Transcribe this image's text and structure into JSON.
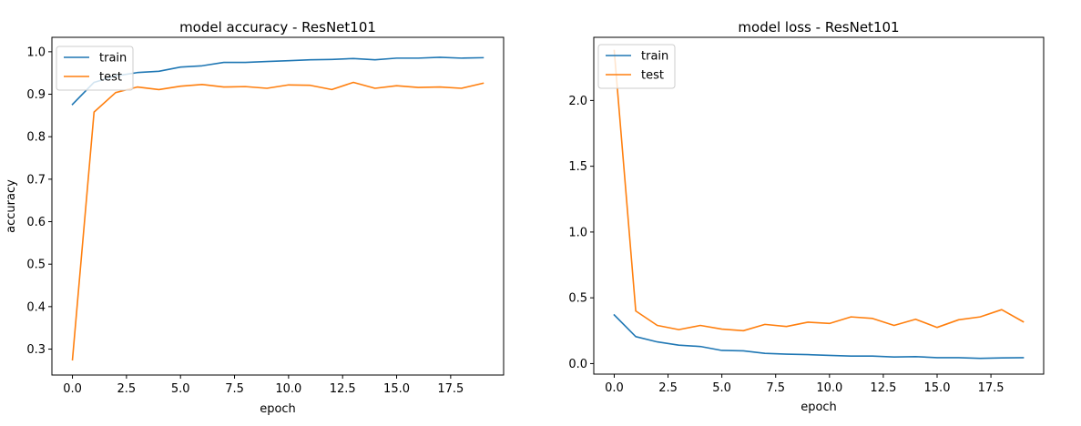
{
  "chart_data": [
    {
      "type": "line",
      "title": "model accuracy - ResNet101",
      "xlabel": "epoch",
      "ylabel": "accuracy",
      "xlim": [
        -0.95,
        19.95
      ],
      "ylim": [
        0.239,
        1.034
      ],
      "xticks": [
        0.0,
        2.5,
        5.0,
        7.5,
        10.0,
        12.5,
        15.0,
        17.5
      ],
      "xtick_labels": [
        "0.0",
        "2.5",
        "5.0",
        "7.5",
        "10.0",
        "12.5",
        "15.0",
        "17.5"
      ],
      "yticks": [
        0.3,
        0.4,
        0.5,
        0.6,
        0.7,
        0.8,
        0.9,
        1.0
      ],
      "ytick_labels": [
        "0.3",
        "0.4",
        "0.5",
        "0.6",
        "0.7",
        "0.8",
        "0.9",
        "1.0"
      ],
      "legend": "upper-left",
      "x": [
        0,
        1,
        2,
        3,
        4,
        5,
        6,
        7,
        8,
        9,
        10,
        11,
        12,
        13,
        14,
        15,
        16,
        17,
        18,
        19
      ],
      "series": [
        {
          "name": "train",
          "color": "#1f77b4",
          "values": [
            0.876,
            0.928,
            0.943,
            0.951,
            0.954,
            0.964,
            0.967,
            0.975,
            0.975,
            0.977,
            0.979,
            0.981,
            0.982,
            0.984,
            0.981,
            0.985,
            0.985,
            0.987,
            0.985,
            0.986
          ]
        },
        {
          "name": "test",
          "color": "#ff7f0e",
          "values": [
            0.275,
            0.858,
            0.904,
            0.917,
            0.911,
            0.919,
            0.923,
            0.917,
            0.918,
            0.914,
            0.922,
            0.921,
            0.911,
            0.928,
            0.914,
            0.92,
            0.916,
            0.917,
            0.914,
            0.926
          ]
        }
      ]
    },
    {
      "type": "line",
      "title": "model loss - ResNet101",
      "xlabel": "epoch",
      "ylabel": "",
      "xlim": [
        -0.95,
        19.95
      ],
      "ylim": [
        -0.08,
        2.48
      ],
      "xticks": [
        0.0,
        2.5,
        5.0,
        7.5,
        10.0,
        12.5,
        15.0,
        17.5
      ],
      "xtick_labels": [
        "0.0",
        "2.5",
        "5.0",
        "7.5",
        "10.0",
        "12.5",
        "15.0",
        "17.5"
      ],
      "yticks": [
        0.0,
        0.5,
        1.0,
        1.5,
        2.0
      ],
      "ytick_labels": [
        "0.0",
        "0.5",
        "1.0",
        "1.5",
        "2.0"
      ],
      "legend": "upper-left",
      "x": [
        0,
        1,
        2,
        3,
        4,
        5,
        6,
        7,
        8,
        9,
        10,
        11,
        12,
        13,
        14,
        15,
        16,
        17,
        18,
        19
      ],
      "series": [
        {
          "name": "train",
          "color": "#1f77b4",
          "values": [
            0.37,
            0.205,
            0.165,
            0.14,
            0.13,
            0.1,
            0.097,
            0.078,
            0.072,
            0.068,
            0.062,
            0.057,
            0.057,
            0.05,
            0.053,
            0.045,
            0.045,
            0.04,
            0.043,
            0.045
          ]
        },
        {
          "name": "test",
          "color": "#ff7f0e",
          "values": [
            2.38,
            0.4,
            0.29,
            0.258,
            0.29,
            0.262,
            0.25,
            0.298,
            0.282,
            0.315,
            0.305,
            0.355,
            0.343,
            0.29,
            0.337,
            0.275,
            0.333,
            0.355,
            0.41,
            0.318
          ]
        }
      ]
    }
  ]
}
